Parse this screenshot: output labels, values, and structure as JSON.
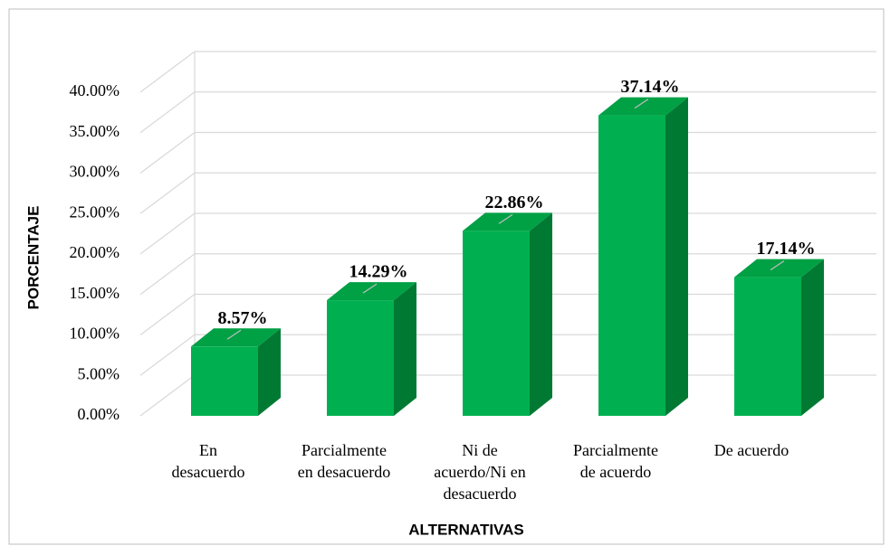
{
  "chart_data": {
    "type": "bar3d",
    "y_label": "PORCENTAJE",
    "x_label": "ALTERNATIVAS",
    "categories": [
      [
        "En",
        "desacuerdo"
      ],
      [
        "Parcialmente",
        "en desacuerdo"
      ],
      [
        "Ni de",
        "acuerdo/Ni en",
        "desacuerdo"
      ],
      [
        "Parcialmente",
        "de acuerdo"
      ],
      [
        "De acuerdo"
      ]
    ],
    "values": [
      8.57,
      14.29,
      22.86,
      37.14,
      17.14
    ],
    "value_labels": [
      "8.57%",
      "14.29%",
      "22.86%",
      "37.14%",
      "17.14%"
    ],
    "color": "#00b050",
    "ylim": [
      0,
      40
    ],
    "yticks": [
      {
        "value": 0,
        "label": "0.00%"
      },
      {
        "value": 5,
        "label": "5.00%"
      },
      {
        "value": 10,
        "label": "10.00%"
      },
      {
        "value": 15,
        "label": "15.00%"
      },
      {
        "value": 20,
        "label": "20.00%"
      },
      {
        "value": 25,
        "label": "25.00%"
      },
      {
        "value": 30,
        "label": "30.00%"
      },
      {
        "value": 35,
        "label": "35.00%"
      },
      {
        "value": 40,
        "label": "40.00%"
      }
    ],
    "grid": true
  }
}
